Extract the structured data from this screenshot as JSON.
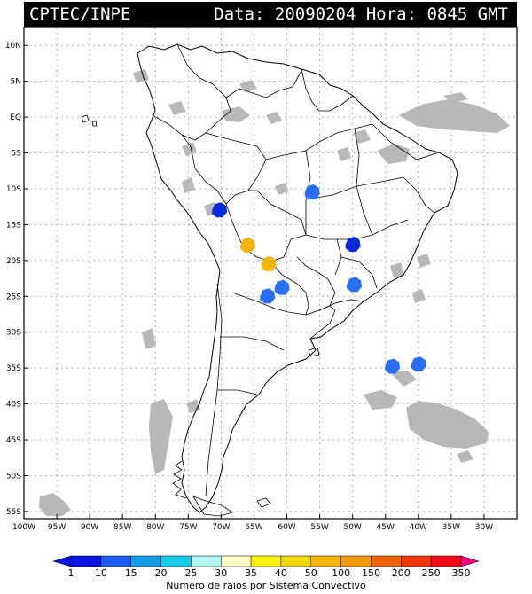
{
  "header": {
    "source": "CPTEC/INPE",
    "datetime": "Data: 20090204 Hora: 0845 GMT"
  },
  "map": {
    "lon_range": [
      -100,
      -25
    ],
    "lat_range": [
      -56,
      12.5
    ],
    "lat_labels": [
      "10N",
      "5N",
      "EQ",
      "5S",
      "10S",
      "15S",
      "20S",
      "25S",
      "30S",
      "35S",
      "40S",
      "45S",
      "50S",
      "55S"
    ],
    "lat_values": [
      10,
      5,
      0,
      -5,
      -10,
      -15,
      -20,
      -25,
      -30,
      -35,
      -40,
      -45,
      -50,
      -55
    ],
    "lon_labels": [
      "100W",
      "95W",
      "90W",
      "85W",
      "80W",
      "75W",
      "70W",
      "65W",
      "60W",
      "55W",
      "50W",
      "45W",
      "40W",
      "35W",
      "30W"
    ],
    "lon_values": [
      -100,
      -95,
      -90,
      -85,
      -80,
      -75,
      -70,
      -65,
      -60,
      -55,
      -50,
      -45,
      -40,
      -35,
      -30
    ],
    "grid": true,
    "cloud_color": "#b8b8b8"
  },
  "convective_systems": [
    {
      "lon": -70.3,
      "lat": -13.0,
      "color": "#0a2ad8"
    },
    {
      "lon": -56.2,
      "lat": -10.5,
      "color": "#2a6ff0"
    },
    {
      "lon": -50.0,
      "lat": -17.8,
      "color": "#0a2ad8"
    },
    {
      "lon": -66.0,
      "lat": -17.9,
      "color": "#f2b50c"
    },
    {
      "lon": -62.8,
      "lat": -20.5,
      "color": "#f2b50c"
    },
    {
      "lon": -60.8,
      "lat": -23.8,
      "color": "#2a6ff0"
    },
    {
      "lon": -63.0,
      "lat": -25.0,
      "color": "#2a6ff0"
    },
    {
      "lon": -49.8,
      "lat": -23.4,
      "color": "#2a6ff0"
    },
    {
      "lon": -44.0,
      "lat": -34.8,
      "color": "#2a6ff0"
    },
    {
      "lon": -40.0,
      "lat": -34.5,
      "color": "#2a6ff0"
    }
  ],
  "colorbar": {
    "labels": [
      "1",
      "10",
      "15",
      "20",
      "25",
      "30",
      "35",
      "40",
      "50",
      "100",
      "150",
      "200",
      "250",
      "350"
    ],
    "colors": [
      "#0a14e0",
      "#1a5cf5",
      "#159ee8",
      "#18cbe6",
      "#b0f5f0",
      "#fffbc8",
      "#fff20a",
      "#f2d60c",
      "#f2b50c",
      "#f29a0c",
      "#f2640c",
      "#f2360c",
      "#f20a1c"
    ],
    "title": "Numero de raios por Sistema Convectivo"
  }
}
